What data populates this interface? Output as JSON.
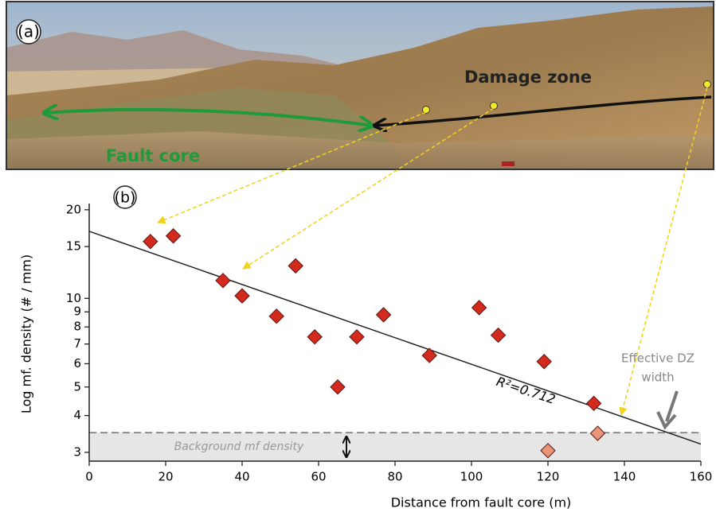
{
  "photo": {
    "panel_label": "(a)",
    "damage_zone": "Damage zone",
    "fault_core": "Fault core"
  },
  "chart_data": {
    "type": "scatter",
    "panel_label": "(b)",
    "x_label": "Distance from fault core (m)",
    "y_label": "Log mf. density (# / mm)",
    "yscale": "log",
    "xlim": [
      0,
      160
    ],
    "ylim": [
      2.8,
      21
    ],
    "xticks": [
      0,
      20,
      40,
      60,
      80,
      100,
      120,
      140,
      160
    ],
    "yticks": [
      3,
      4,
      5,
      6,
      7,
      8,
      9,
      10,
      15,
      20
    ],
    "series": [
      {
        "color": "#d42a1e",
        "x": [
          16,
          22,
          35,
          40,
          49,
          54,
          59,
          65,
          70,
          77,
          89,
          102,
          107,
          119,
          132
        ],
        "values": [
          15.6,
          16.3,
          11.5,
          10.2,
          8.7,
          12.9,
          7.4,
          5.0,
          7.4,
          8.8,
          6.4,
          9.3,
          7.5,
          6.1,
          4.4
        ]
      },
      {
        "color": "#e8957a",
        "x": [
          120,
          133
        ],
        "values": [
          3.04,
          3.48
        ]
      }
    ],
    "fit": {
      "x": [
        0,
        160
      ],
      "values": [
        16.9,
        3.2
      ],
      "color": "#222222"
    },
    "fit_label": "R²=0.712",
    "background_level": 3.5,
    "background_label": "Background mf density",
    "dz_label": [
      "Effective DZ",
      "width"
    ]
  }
}
